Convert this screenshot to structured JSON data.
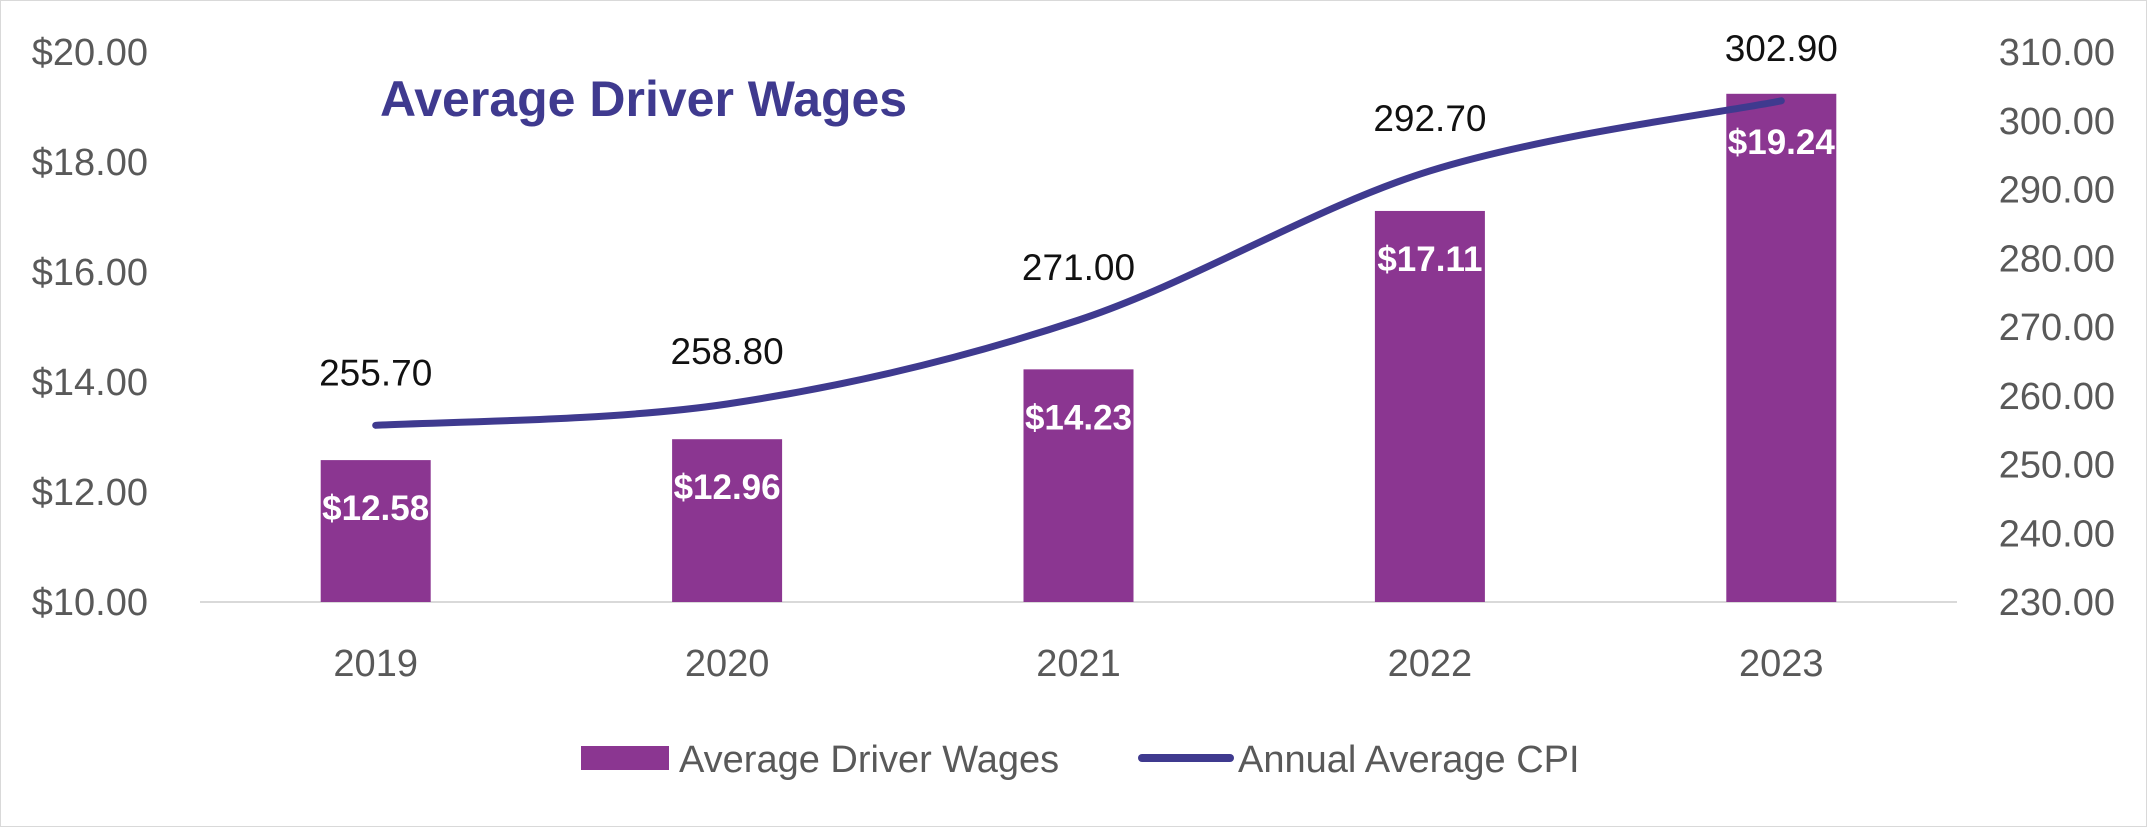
{
  "chart_data": {
    "type": "bar",
    "title": "Average Driver Wages",
    "categories": [
      "2019",
      "2020",
      "2021",
      "2022",
      "2023"
    ],
    "series": [
      {
        "name": "Average Driver Wages",
        "type": "bar",
        "axis": "left",
        "values": [
          12.58,
          12.96,
          14.23,
          17.11,
          19.24
        ],
        "labels": [
          "$12.58",
          "$12.96",
          "$14.23",
          "$17.11",
          "$19.24"
        ],
        "color": "#8b3691"
      },
      {
        "name": "Annual Average CPI",
        "type": "line",
        "axis": "right",
        "values": [
          255.7,
          258.8,
          271.0,
          292.7,
          302.9
        ],
        "labels": [
          "255.70",
          "258.80",
          "271.00",
          "292.70",
          "302.90"
        ],
        "color": "#3f3a8f"
      }
    ],
    "y_left": {
      "min": 10,
      "max": 20,
      "step": 2,
      "tick_labels": [
        "$10.00",
        "$12.00",
        "$14.00",
        "$16.00",
        "$18.00",
        "$20.00"
      ]
    },
    "y_right": {
      "min": 230,
      "max": 310,
      "step": 10,
      "tick_labels": [
        "230.00",
        "240.00",
        "250.00",
        "260.00",
        "270.00",
        "280.00",
        "290.00",
        "300.00",
        "310.00"
      ]
    },
    "xlabel": "",
    "ylabel": "",
    "grid": false,
    "legend_position": "bottom",
    "axis_color": "#d9d9d9"
  }
}
